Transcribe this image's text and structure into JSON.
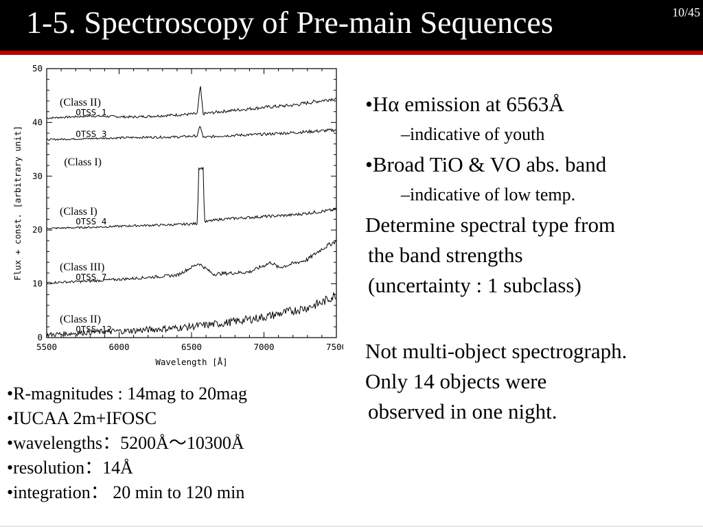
{
  "title": "1-5. Spectroscopy of Pre-main Sequences",
  "page_number": "10/45",
  "chart_data": {
    "type": "line",
    "xlabel": "Wavelength [Å]",
    "ylabel": "Flux + const. [arbitrary unit]",
    "xlim": [
      5500,
      7500
    ],
    "ylim": [
      0,
      50
    ],
    "x_ticks": [
      "5500",
      "6000",
      "6500",
      "7000",
      "7500"
    ],
    "y_ticks": [
      "0",
      "10",
      "20",
      "30",
      "40",
      "50"
    ],
    "series": [
      {
        "name": "OTSS 1",
        "class_label": "(Class II)",
        "x": [
          5500,
          5800,
          6100,
          6400,
          6540,
          6560,
          6580,
          6700,
          7000,
          7200,
          7500
        ],
        "y": [
          40.8,
          41.2,
          41.0,
          41.4,
          41.6,
          47.0,
          41.6,
          42.0,
          42.8,
          43.2,
          44.5
        ]
      },
      {
        "name": "OTSS 3",
        "class_label": "",
        "x": [
          5500,
          5800,
          6100,
          6400,
          6540,
          6560,
          6580,
          6700,
          7000,
          7200,
          7500
        ],
        "y": [
          36.8,
          37.0,
          37.2,
          37.3,
          37.5,
          39.5,
          37.2,
          37.5,
          37.8,
          38.1,
          38.6
        ]
      },
      {
        "name": "OTSS 4",
        "class_label": "(Class I)",
        "x": [
          5500,
          5800,
          6100,
          6400,
          6540,
          6550,
          6580,
          6590,
          6700,
          7000,
          7200,
          7500
        ],
        "y": [
          20.3,
          20.5,
          20.8,
          21.0,
          21.2,
          31.5,
          31.5,
          21.5,
          22.0,
          22.5,
          22.8,
          23.8
        ]
      },
      {
        "name": "OTSS 7",
        "class_label": "(Class III)",
        "x": [
          5500,
          5800,
          6100,
          6400,
          6550,
          6650,
          6900,
          7050,
          7100,
          7300,
          7400,
          7500
        ],
        "y": [
          10.2,
          10.5,
          11.0,
          11.6,
          13.8,
          11.8,
          12.2,
          14.0,
          13.0,
          14.5,
          16.5,
          18.0
        ]
      },
      {
        "name": "OTSS 12",
        "class_label": "(Class II)",
        "x": [
          5500,
          5800,
          6100,
          6400,
          6550,
          6700,
          7000,
          7200,
          7300,
          7400,
          7500
        ],
        "y": [
          0.5,
          1.0,
          1.3,
          1.8,
          2.2,
          2.6,
          3.8,
          5.0,
          5.6,
          6.5,
          8.0
        ]
      }
    ],
    "extra_labels": [
      "(Class I)"
    ],
    "grid": false,
    "legend": "none"
  },
  "left_bullets": [
    "•R-magnitudes : 14mag to 20mag",
    "•IUCAA 2m+IFOSC",
    "•wavelengths：5200Å～10300Å",
    "•resolution：14Å",
    "•integration： 20 min to 120 min"
  ],
  "right_text": {
    "b1": "•Hα  emission at 6563Å",
    "b1_sub": "–indicative of youth",
    "b2": "•Broad TiO & VO abs. band",
    "b2_sub": "–indicative of low temp.",
    "p1_l1": "Determine spectral type from",
    "p1_l2": "the band strengths",
    "p1_l3": "(uncertainty : 1 subclass)",
    "p2_l1": "Not multi-object spectrograph.",
    "p2_l2": "Only 14 objects were",
    "p2_l3": "observed in one night."
  }
}
